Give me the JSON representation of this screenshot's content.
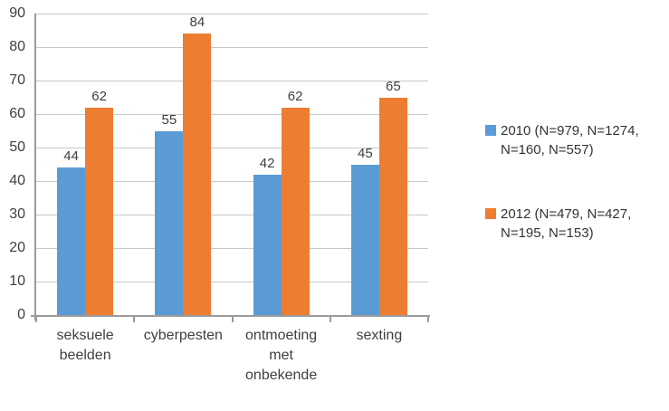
{
  "chart_data": {
    "type": "bar",
    "title": "",
    "xlabel": "",
    "ylabel": "",
    "categories": [
      "seksuele beelden",
      "cyberpesten",
      "ontmoeting met onbekende",
      "sexting"
    ],
    "category_label_lines": [
      [
        "seksuele",
        "beelden"
      ],
      [
        "cyberpesten"
      ],
      [
        "ontmoeting",
        "met",
        "onbekende"
      ],
      [
        "sexting"
      ]
    ],
    "series": [
      {
        "name": "2010 (N=979, N=1274, N=160, N=557)",
        "color": "#5B9BD5",
        "values": [
          44,
          55,
          42,
          45
        ]
      },
      {
        "name": "2012 (N=479, N=427, N=195, N=153)",
        "color": "#ED7D31",
        "values": [
          62,
          84,
          62,
          65
        ]
      }
    ],
    "data_labels": [
      [
        "44",
        "55",
        "42",
        "45"
      ],
      [
        "62",
        "84",
        "62",
        "65"
      ]
    ],
    "legend_position": "right",
    "legend_entries": [
      {
        "lines": [
          "2010 (N=979, N=1274,",
          "N=160, N=557)"
        ],
        "color": "#5B9BD5"
      },
      {
        "lines": [
          "2012 (N=479, N=427,",
          "N=195, N=153)"
        ],
        "color": "#ED7D31"
      }
    ],
    "ylim": [
      0,
      90
    ],
    "ytick_step": 10,
    "ytick_labels": [
      "0",
      "10",
      "20",
      "30",
      "40",
      "50",
      "60",
      "70",
      "80",
      "90"
    ],
    "grid": true,
    "colors": {
      "gridline": "#C8C8C8",
      "axis": "#9B9B9B",
      "text": "#3F3F3F"
    }
  }
}
